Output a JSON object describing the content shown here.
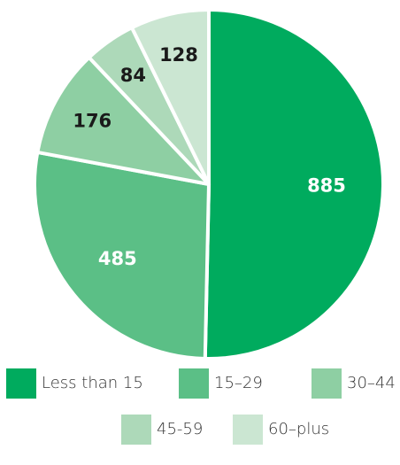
{
  "chart_data": {
    "type": "pie",
    "categories": [
      "Less than 15",
      "15–29",
      "30–44",
      "45-59",
      "60–plus"
    ],
    "values": [
      885,
      485,
      176,
      84,
      128
    ],
    "data_labels": [
      "885",
      "485",
      "176",
      "84",
      "128"
    ],
    "colors": [
      "#00ab5e",
      "#5bbf86",
      "#8ecfa3",
      "#add9b9",
      "#cbe6d2"
    ],
    "label_colors": [
      "#ffffff",
      "#ffffff",
      "#1a1a1a",
      "#1a1a1a",
      "#1a1a1a"
    ],
    "start_angle": "12 o'clock",
    "direction": "clockwise",
    "legend": "bottom"
  }
}
